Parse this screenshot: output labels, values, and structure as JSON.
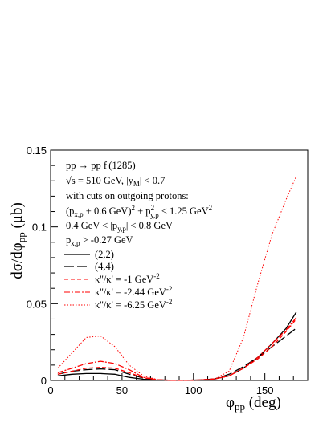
{
  "chart_data": {
    "type": "line",
    "title": "",
    "xlabel": "φ_pp (deg)",
    "ylabel": "dσ/dφ_pp (μb)",
    "xlim": [
      0,
      180
    ],
    "ylim": [
      0,
      0.15
    ],
    "x_ticks": [
      "0",
      "50",
      "100",
      "150"
    ],
    "y_ticks": [
      "0",
      "0.05",
      "0.1",
      "0.15"
    ],
    "annotations": [
      "pp → pp f (1285)",
      "√s = 510 GeV, |y_M| < 0.7",
      "with cuts on outgoing protons:",
      "(p_x,p + 0.6 GeV)² + p²_y,p < 1.25 GeV²",
      "0.4 GeV < |p_y,p| < 0.8 GeV",
      "p_x,p > -0.27 GeV"
    ],
    "legend_position": "left, below annotations",
    "series": [
      {
        "name": "(2,2)",
        "style": "solid",
        "color": "#000000",
        "x": [
          5,
          15,
          25,
          35,
          45,
          55,
          65,
          75,
          85,
          95,
          105,
          115,
          125,
          135,
          145,
          155,
          165,
          172
        ],
        "y": [
          0.003,
          0.004,
          0.0045,
          0.0045,
          0.004,
          0.002,
          0.0008,
          0.0002,
          0.0001,
          0.0001,
          0.0003,
          0.001,
          0.003,
          0.008,
          0.015,
          0.024,
          0.034,
          0.0445
        ]
      },
      {
        "name": "(4,4)",
        "style": "long-dash",
        "color": "#000000",
        "x": [
          5,
          15,
          25,
          35,
          45,
          55,
          65,
          75,
          85,
          95,
          105,
          115,
          125,
          135,
          145,
          155,
          165,
          172
        ],
        "y": [
          0.004,
          0.006,
          0.007,
          0.0075,
          0.007,
          0.004,
          0.0015,
          0.0004,
          0.0001,
          0.0001,
          0.0003,
          0.001,
          0.004,
          0.009,
          0.015,
          0.022,
          0.029,
          0.034
        ]
      },
      {
        "name": "κ''/κ' = -1 GeV⁻²",
        "style": "dashed",
        "color": "#ff0000",
        "x": [
          5,
          15,
          25,
          35,
          45,
          55,
          65,
          75,
          85,
          95,
          105,
          115,
          125,
          135,
          145,
          155,
          165,
          172
        ],
        "y": [
          0.004,
          0.006,
          0.008,
          0.0085,
          0.008,
          0.005,
          0.0018,
          0.0004,
          0.0001,
          0.0001,
          0.0003,
          0.001,
          0.003,
          0.008,
          0.014,
          0.022,
          0.032,
          0.04
        ]
      },
      {
        "name": "κ''/κ' = -2.44 GeV⁻²",
        "style": "dash-dot",
        "color": "#ff0000",
        "x": [
          5,
          15,
          25,
          35,
          45,
          55,
          65,
          75,
          85,
          95,
          105,
          115,
          125,
          135,
          145,
          155,
          165,
          172
        ],
        "y": [
          0.005,
          0.008,
          0.011,
          0.0125,
          0.011,
          0.007,
          0.002,
          0.0004,
          0.0001,
          0.0001,
          0.0003,
          0.001,
          0.003,
          0.008,
          0.015,
          0.024,
          0.033,
          0.041
        ]
      },
      {
        "name": "κ''/κ' = -6.25 GeV⁻²",
        "style": "dotted",
        "color": "#ff0000",
        "x": [
          5,
          15,
          25,
          35,
          45,
          55,
          65,
          75,
          85,
          95,
          105,
          115,
          125,
          135,
          145,
          155,
          165,
          172
        ],
        "y": [
          0.008,
          0.018,
          0.028,
          0.029,
          0.022,
          0.01,
          0.003,
          0.0005,
          0.0001,
          0.0001,
          0.0003,
          0.001,
          0.006,
          0.028,
          0.063,
          0.095,
          0.118,
          0.133
        ]
      }
    ]
  }
}
